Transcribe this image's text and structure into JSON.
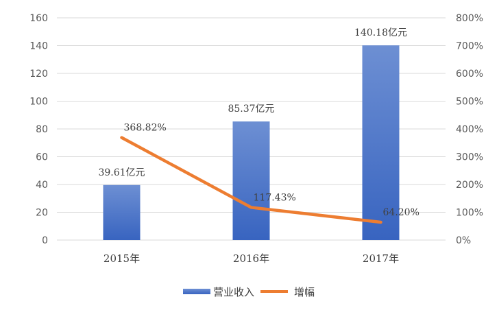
{
  "chart_data": {
    "type": "bar",
    "categories": [
      "2015年",
      "2016年",
      "2017年"
    ],
    "series": [
      {
        "name": "营业收入",
        "type": "bar",
        "axis": "left",
        "color": "#4472C4",
        "values": [
          39.61,
          85.37,
          140.18
        ],
        "labels": [
          "39.61亿元",
          "85.37亿元",
          "140.18亿元"
        ]
      },
      {
        "name": "增幅",
        "type": "line",
        "axis": "right",
        "color": "#ED7D31",
        "values": [
          368.82,
          117.43,
          64.2
        ],
        "labels": [
          "368.82%",
          "117.43%",
          "64.20%"
        ]
      }
    ],
    "y_left": {
      "min": 0,
      "max": 160,
      "step": 20,
      "ticks": [
        "0",
        "20",
        "40",
        "60",
        "80",
        "100",
        "120",
        "140",
        "160"
      ]
    },
    "y_right": {
      "min": 0,
      "max": 800,
      "step": 100,
      "ticks": [
        "0%",
        "100%",
        "200%",
        "300%",
        "400%",
        "500%",
        "600%",
        "700%",
        "800%"
      ]
    },
    "grid": true,
    "legend_position": "bottom"
  }
}
